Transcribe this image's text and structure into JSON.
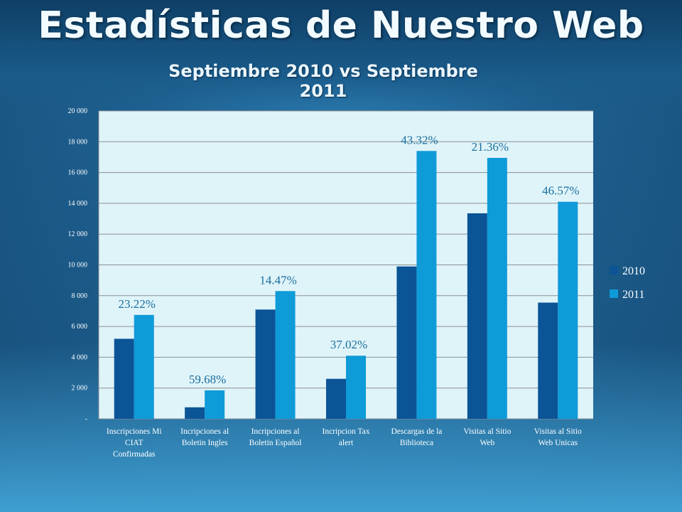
{
  "slide": {
    "title": "Estadísticas de Nuestro Web",
    "subtitle": "Septiembre 2010 vs Septiembre 2011"
  },
  "colors": {
    "series_2010": "#0b5496",
    "series_2011": "#0f9ad8",
    "plot_bg": "#dff4f9",
    "grid": "#8a8f94",
    "annotation_text": "#1a6e9e",
    "axis_text": "#ffffff"
  },
  "chart_data": {
    "type": "bar",
    "categories": [
      [
        "Inscripciones Mi",
        "CIAT",
        "Confirmadas"
      ],
      [
        "Incripciones al",
        "Boletin Ingles"
      ],
      [
        "Incripciones al",
        "Boletin Español"
      ],
      [
        "Incripcion Tax",
        "alert"
      ],
      [
        "Descargas de la",
        "Biblioteca"
      ],
      [
        "Visitas al Sitio",
        "Web"
      ],
      [
        "Visitas al Sitio",
        "Web Unicas"
      ]
    ],
    "series": [
      {
        "name": "2010",
        "values": [
          5200,
          750,
          7100,
          2600,
          9900,
          13350,
          7550
        ]
      },
      {
        "name": "2011",
        "values": [
          6750,
          1850,
          8300,
          4100,
          17400,
          16950,
          14100
        ]
      }
    ],
    "annotations": [
      "23.22%",
      "59.68%",
      "14.47%",
      "37.02%",
      "43.32%",
      "21.36%",
      "46.57%"
    ],
    "ylim": [
      0,
      20000
    ],
    "yticks": [
      0,
      2000,
      4000,
      6000,
      8000,
      10000,
      12000,
      14000,
      16000,
      18000,
      20000
    ],
    "ytick_labels": [
      "-",
      "2 000",
      "4 000",
      "6 000",
      "8 000",
      "10 000",
      "12 000",
      "14 000",
      "16 000",
      "18 000",
      "20 000"
    ],
    "grid": true,
    "legend_position": "right"
  }
}
